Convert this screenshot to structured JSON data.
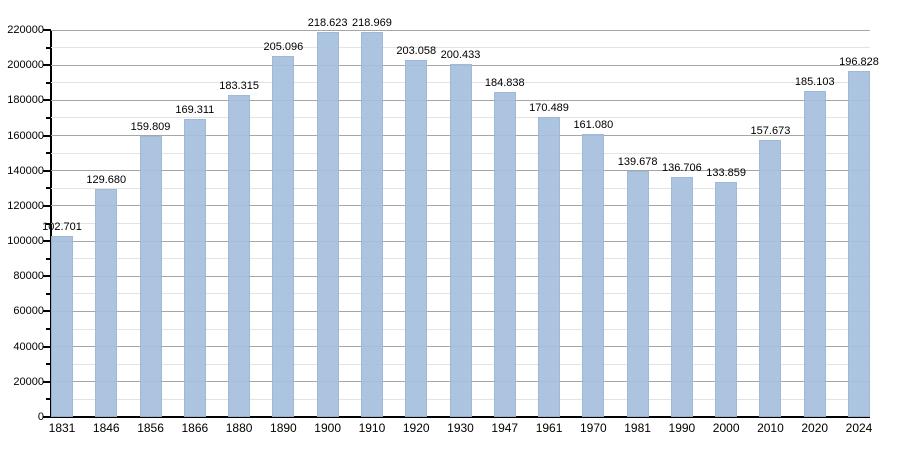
{
  "chart_data": {
    "type": "bar",
    "title": "",
    "xlabel": "",
    "ylabel": "",
    "categories": [
      "1831",
      "1846",
      "1856",
      "1866",
      "1880",
      "1890",
      "1900",
      "1910",
      "1920",
      "1930",
      "1947",
      "1961",
      "1970",
      "1981",
      "1990",
      "2000",
      "2010",
      "2020",
      "2024"
    ],
    "values": [
      102701,
      129680,
      159809,
      169311,
      183315,
      205096,
      218623,
      218969,
      203058,
      200433,
      184838,
      170489,
      161080,
      139678,
      136706,
      133859,
      157673,
      185103,
      196828
    ],
    "value_labels": [
      "102.701",
      "129.680",
      "159.809",
      "169.311",
      "183.315",
      "205.096",
      "218.623",
      "218.969",
      "203.058",
      "200.433",
      "184.838",
      "170.489",
      "161.080",
      "139.678",
      "136.706",
      "133.859",
      "157.673",
      "185.103",
      "196.828"
    ],
    "ylim": [
      0,
      220000
    ],
    "ytick_step": 20000,
    "minor_ytick_step": 10000,
    "ytick_labels": [
      "0",
      "20000",
      "40000",
      "60000",
      "80000",
      "100000",
      "120000",
      "140000",
      "160000",
      "180000",
      "200000",
      "220000"
    ],
    "grid": true,
    "legend_position": "none",
    "colors": {
      "bar_fill": "#b3c9e3",
      "major_grid": "#a6a6a6",
      "minor_grid": "#e3e3e3",
      "axis": "#000000",
      "text": "#000000"
    }
  }
}
